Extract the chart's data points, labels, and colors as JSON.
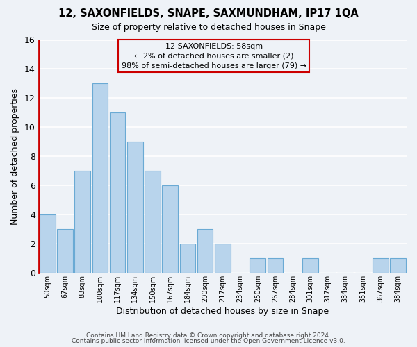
{
  "title1": "12, SAXONFIELDS, SNAPE, SAXMUNDHAM, IP17 1QA",
  "title2": "Size of property relative to detached houses in Snape",
  "xlabel": "Distribution of detached houses by size in Snape",
  "ylabel": "Number of detached properties",
  "categories": [
    "50sqm",
    "67sqm",
    "83sqm",
    "100sqm",
    "117sqm",
    "134sqm",
    "150sqm",
    "167sqm",
    "184sqm",
    "200sqm",
    "217sqm",
    "234sqm",
    "250sqm",
    "267sqm",
    "284sqm",
    "301sqm",
    "317sqm",
    "334sqm",
    "351sqm",
    "367sqm",
    "384sqm"
  ],
  "values": [
    4,
    3,
    7,
    13,
    11,
    9,
    7,
    6,
    2,
    3,
    2,
    0,
    1,
    1,
    0,
    1,
    0,
    0,
    0,
    1,
    1
  ],
  "bar_color": "#b8d4ec",
  "bar_edge_color": "#6aaad4",
  "annotation_title": "12 SAXONFIELDS: 58sqm",
  "annotation_line1": "← 2% of detached houses are smaller (2)",
  "annotation_line2": "98% of semi-detached houses are larger (79) →",
  "highlight_edge_color": "#cc0000",
  "footer1": "Contains HM Land Registry data © Crown copyright and database right 2024.",
  "footer2": "Contains public sector information licensed under the Open Government Licence v3.0.",
  "ylim": [
    0,
    16
  ],
  "yticks": [
    0,
    2,
    4,
    6,
    8,
    10,
    12,
    14,
    16
  ],
  "bg_color": "#eef2f7",
  "grid_color": "#ffffff",
  "figsize": [
    6.0,
    5.0
  ],
  "dpi": 100
}
